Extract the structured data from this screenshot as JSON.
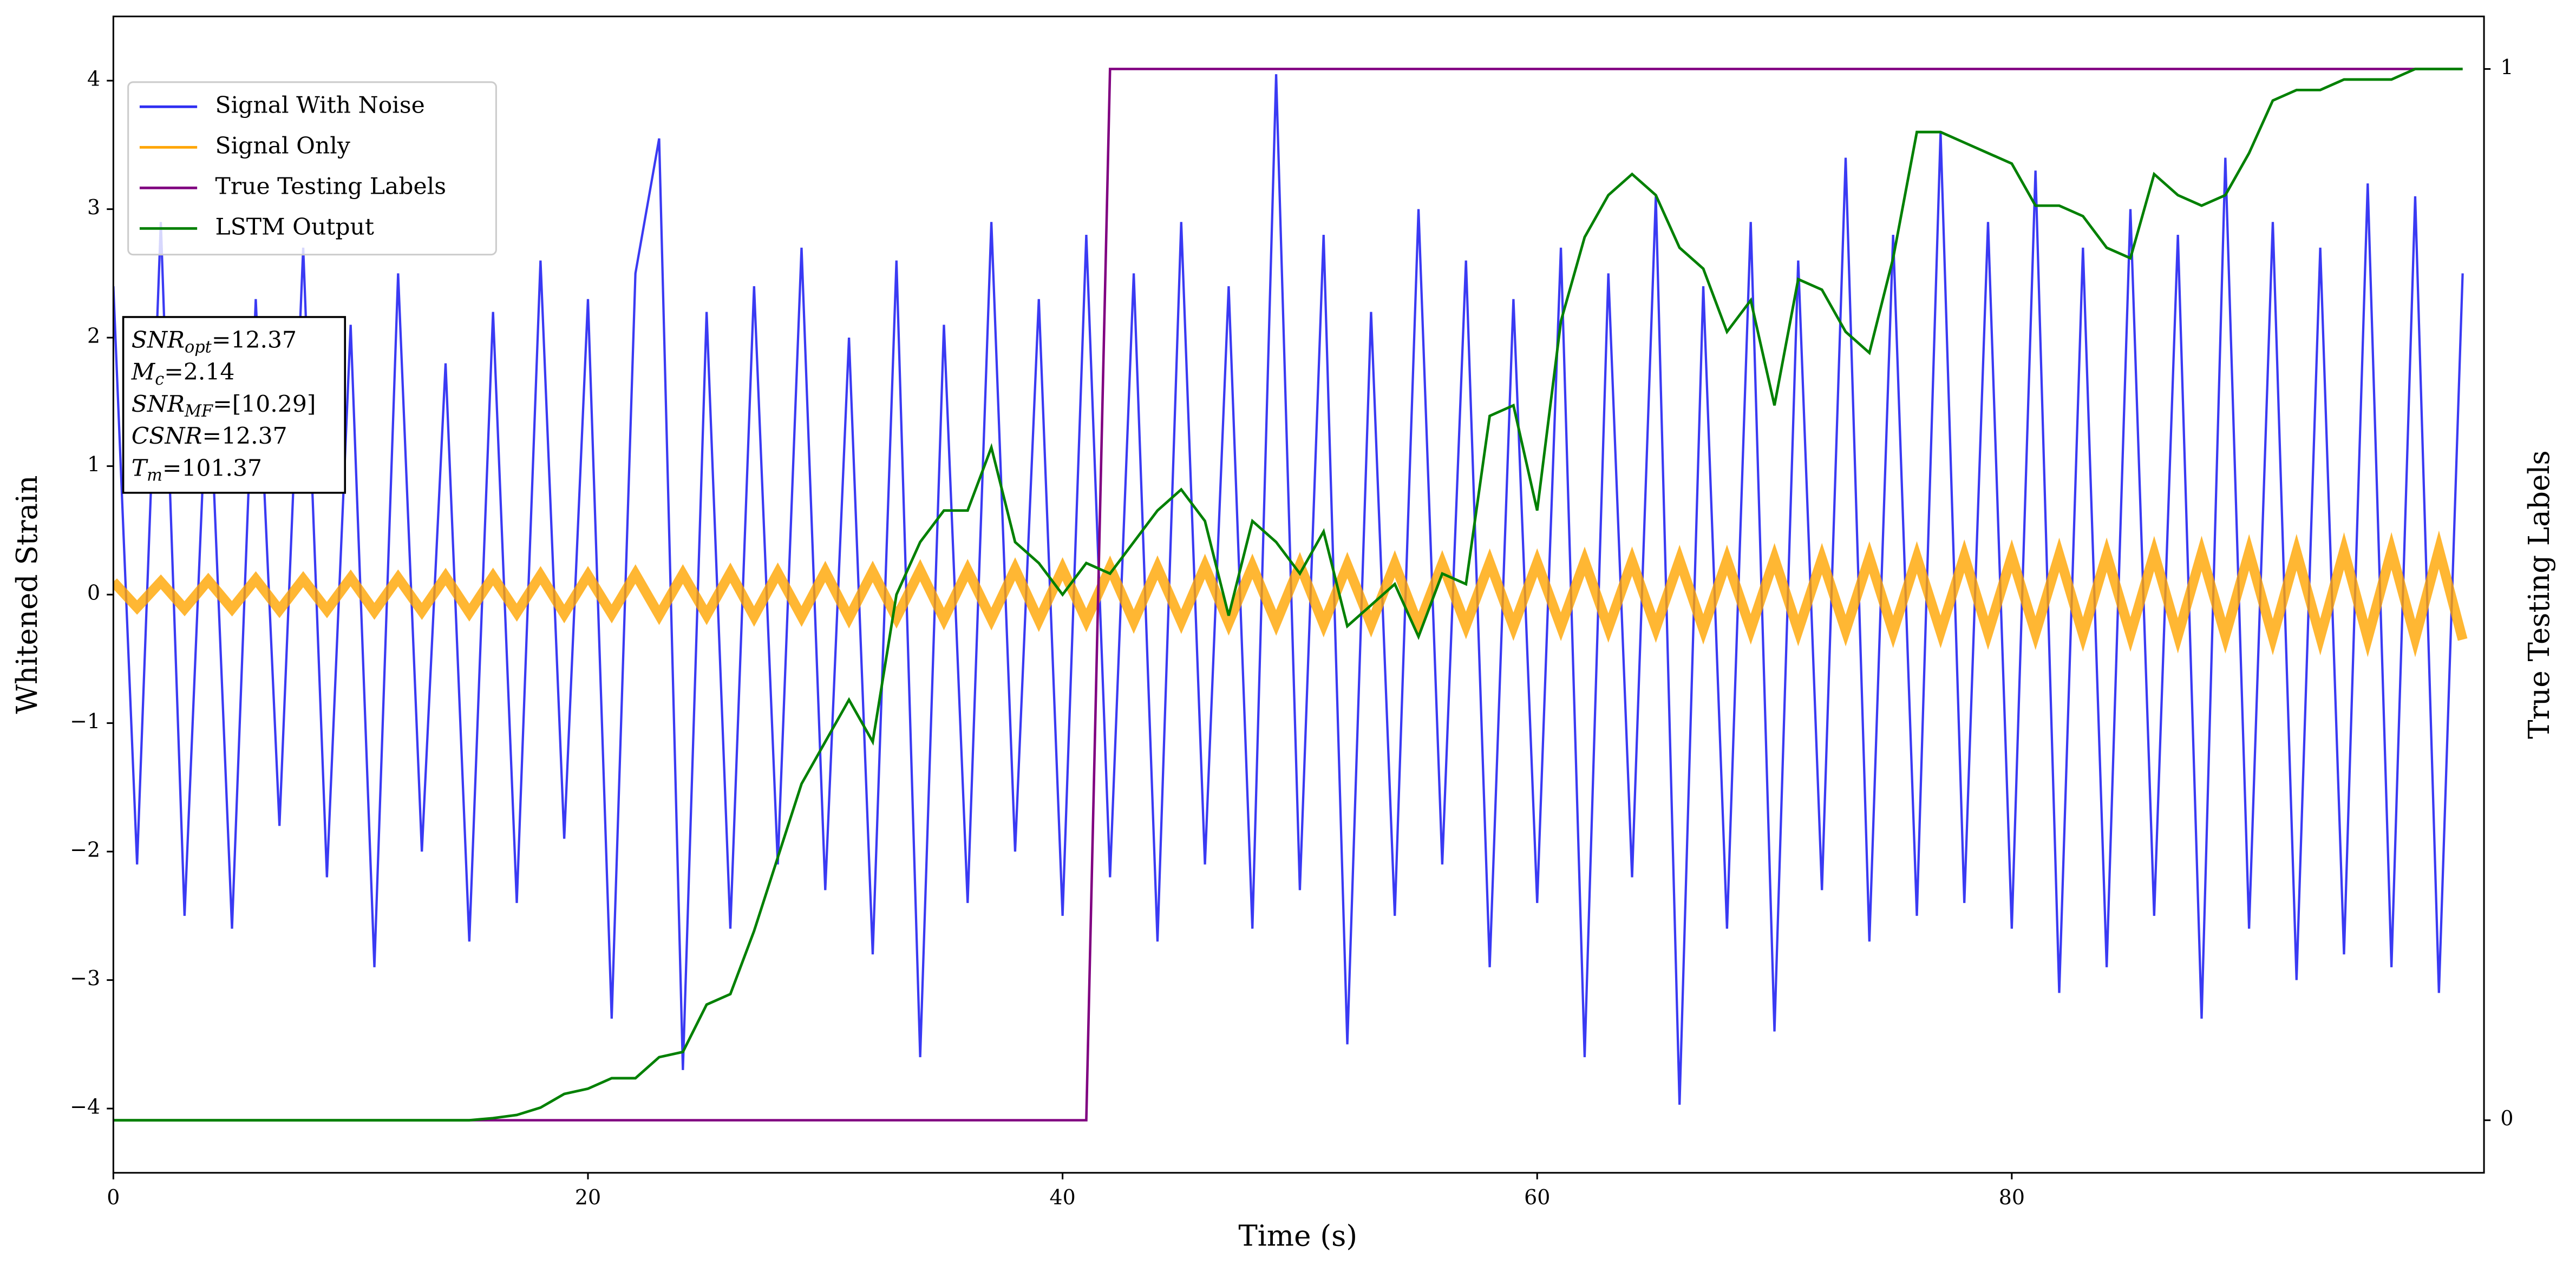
{
  "chart_data": {
    "type": "line",
    "xlabel": "Time (s)",
    "ylabel": "Whitened Strain",
    "y2label": "True Testing Labels",
    "xlim": [
      0,
      99.9
    ],
    "ylim": [
      -4.5,
      4.5
    ],
    "y2lim": [
      -0.05,
      1.05
    ],
    "xticks": [
      0,
      20,
      40,
      60,
      80
    ],
    "yticks": [
      {
        "value": -4,
        "label": "−4"
      },
      {
        "value": -3,
        "label": "−3"
      },
      {
        "value": -2,
        "label": "−2"
      },
      {
        "value": -1,
        "label": "−1"
      },
      0,
      1,
      2,
      3,
      4
    ],
    "y2ticks": [
      0,
      1
    ],
    "grid": false,
    "legend": "upper left",
    "x": [
      0,
      1,
      2,
      3,
      4,
      5,
      6,
      7,
      8,
      9,
      10,
      11,
      12,
      13,
      14,
      15,
      16,
      17,
      18,
      19,
      20,
      21,
      22,
      23,
      24,
      25,
      26,
      27,
      28,
      29,
      30,
      31,
      32,
      33,
      34,
      35,
      36,
      37,
      38,
      39,
      40,
      41,
      42,
      43,
      44,
      45,
      46,
      47,
      48,
      49,
      50,
      51,
      52,
      53,
      54,
      55,
      56,
      57,
      58,
      59,
      60,
      61,
      62,
      63,
      64,
      65,
      66,
      67,
      68,
      69,
      70,
      71,
      72,
      73,
      74,
      75,
      76,
      77,
      78,
      79,
      80,
      81,
      82,
      83,
      84,
      85,
      86,
      87,
      88,
      89,
      90,
      91,
      92,
      93,
      94,
      95,
      96,
      97,
      98,
      99
    ],
    "series": [
      {
        "name": "Signal With Noise",
        "color": "#2f2ff2",
        "axis": "y",
        "values": [
          2.4,
          -2.1,
          2.9,
          -2.5,
          1.9,
          -2.6,
          2.3,
          -1.8,
          2.7,
          -2.2,
          2.1,
          -2.9,
          2.5,
          -2.0,
          1.8,
          -2.7,
          2.2,
          -2.4,
          2.6,
          -1.9,
          2.3,
          -3.3,
          2.5,
          3.55,
          -3.7,
          2.2,
          -2.6,
          2.4,
          -2.1,
          2.7,
          -2.3,
          2.0,
          -2.8,
          2.6,
          -3.6,
          2.1,
          -2.4,
          2.9,
          -2.0,
          2.3,
          -2.5,
          2.8,
          -2.2,
          2.5,
          -2.7,
          2.9,
          -2.1,
          2.4,
          -2.6,
          4.05,
          -2.3,
          2.8,
          -3.5,
          2.2,
          -2.5,
          3.0,
          -2.1,
          2.6,
          -2.9,
          2.3,
          -2.4,
          2.7,
          -3.6,
          2.5,
          -2.2,
          3.1,
          -3.97,
          2.4,
          -2.6,
          2.9,
          -3.4,
          2.6,
          -2.3,
          3.4,
          -2.7,
          2.8,
          -2.5,
          3.6,
          -2.4,
          2.9,
          -2.6,
          3.3,
          -3.1,
          2.7,
          -2.9,
          3.0,
          -2.5,
          2.8,
          -3.3,
          3.4,
          -2.6,
          2.9,
          -3.0,
          2.7,
          -2.8,
          3.2,
          -2.9,
          3.1,
          -3.1,
          2.5
        ]
      },
      {
        "name": "Signal Only",
        "color": "#ffa500",
        "axis": "y",
        "values": [
          0.1,
          -0.1,
          0.1,
          -0.11,
          0.11,
          -0.11,
          0.12,
          -0.12,
          0.12,
          -0.12,
          0.13,
          -0.13,
          0.13,
          -0.13,
          0.14,
          -0.14,
          0.14,
          -0.14,
          0.15,
          -0.15,
          0.15,
          -0.15,
          0.16,
          -0.16,
          0.16,
          -0.16,
          0.17,
          -0.17,
          0.17,
          -0.17,
          0.18,
          -0.18,
          0.18,
          -0.18,
          0.19,
          -0.19,
          0.19,
          -0.19,
          0.2,
          -0.2,
          0.2,
          -0.2,
          0.21,
          -0.21,
          0.21,
          -0.21,
          0.22,
          -0.22,
          0.22,
          -0.22,
          0.23,
          -0.23,
          0.23,
          -0.23,
          0.24,
          -0.24,
          0.24,
          -0.24,
          0.25,
          -0.25,
          0.25,
          -0.25,
          0.26,
          -0.26,
          0.26,
          -0.26,
          0.27,
          -0.27,
          0.27,
          -0.27,
          0.28,
          -0.28,
          0.28,
          -0.28,
          0.29,
          -0.29,
          0.29,
          -0.29,
          0.3,
          -0.3,
          0.3,
          -0.3,
          0.31,
          -0.31,
          0.31,
          -0.31,
          0.32,
          -0.32,
          0.32,
          -0.32,
          0.33,
          -0.33,
          0.33,
          -0.33,
          0.34,
          -0.34,
          0.34,
          -0.34,
          0.35,
          -0.35
        ]
      },
      {
        "name": "True Testing Labels",
        "color": "#800080",
        "axis": "y2",
        "values": [
          0,
          0,
          0,
          0,
          0,
          0,
          0,
          0,
          0,
          0,
          0,
          0,
          0,
          0,
          0,
          0,
          0,
          0,
          0,
          0,
          0,
          0,
          0,
          0,
          0,
          0,
          0,
          0,
          0,
          0,
          0,
          0,
          0,
          0,
          0,
          0,
          0,
          0,
          0,
          0,
          0,
          0,
          1,
          1,
          1,
          1,
          1,
          1,
          1,
          1,
          1,
          1,
          1,
          1,
          1,
          1,
          1,
          1,
          1,
          1,
          1,
          1,
          1,
          1,
          1,
          1,
          1,
          1,
          1,
          1,
          1,
          1,
          1,
          1,
          1,
          1,
          1,
          1,
          1,
          1,
          1,
          1,
          1,
          1,
          1,
          1,
          1,
          1,
          1,
          1,
          1,
          1,
          1,
          1,
          1,
          1,
          1,
          1,
          1,
          1
        ]
      },
      {
        "name": "LSTM Output",
        "color": "#008000",
        "axis": "y2",
        "values": [
          0,
          0,
          0,
          0,
          0,
          0,
          0,
          0,
          0,
          0,
          0,
          0,
          0,
          0,
          0,
          0,
          0.002,
          0.005,
          0.012,
          0.025,
          0.03,
          0.04,
          0.04,
          0.06,
          0.065,
          0.11,
          0.12,
          0.18,
          0.25,
          0.32,
          0.36,
          0.4,
          0.36,
          0.5,
          0.55,
          0.58,
          0.58,
          0.64,
          0.55,
          0.53,
          0.5,
          0.53,
          0.52,
          0.55,
          0.58,
          0.6,
          0.57,
          0.48,
          0.57,
          0.55,
          0.52,
          0.56,
          0.47,
          0.49,
          0.51,
          0.46,
          0.52,
          0.51,
          0.67,
          0.68,
          0.58,
          0.76,
          0.84,
          0.88,
          0.9,
          0.88,
          0.83,
          0.81,
          0.75,
          0.78,
          0.68,
          0.8,
          0.79,
          0.75,
          0.73,
          0.82,
          0.94,
          0.94,
          0.93,
          0.92,
          0.91,
          0.87,
          0.87,
          0.86,
          0.83,
          0.82,
          0.9,
          0.88,
          0.87,
          0.88,
          0.92,
          0.97,
          0.98,
          0.98,
          0.99,
          0.99,
          0.99,
          1.0,
          1.0,
          1.0
        ]
      }
    ],
    "annotation": [
      {
        "symbol": "SNR",
        "subscript": "opt",
        "text": "=12.37"
      },
      {
        "symbol": "M",
        "subscript": "c",
        "text": "=2.14"
      },
      {
        "symbol": "SNR",
        "subscript": "MF",
        "text": "=[10.29]"
      },
      {
        "symbol": "CSNR",
        "text": "=12.37"
      },
      {
        "symbol": "T",
        "subscript": "m",
        "text": "=101.37"
      }
    ]
  }
}
